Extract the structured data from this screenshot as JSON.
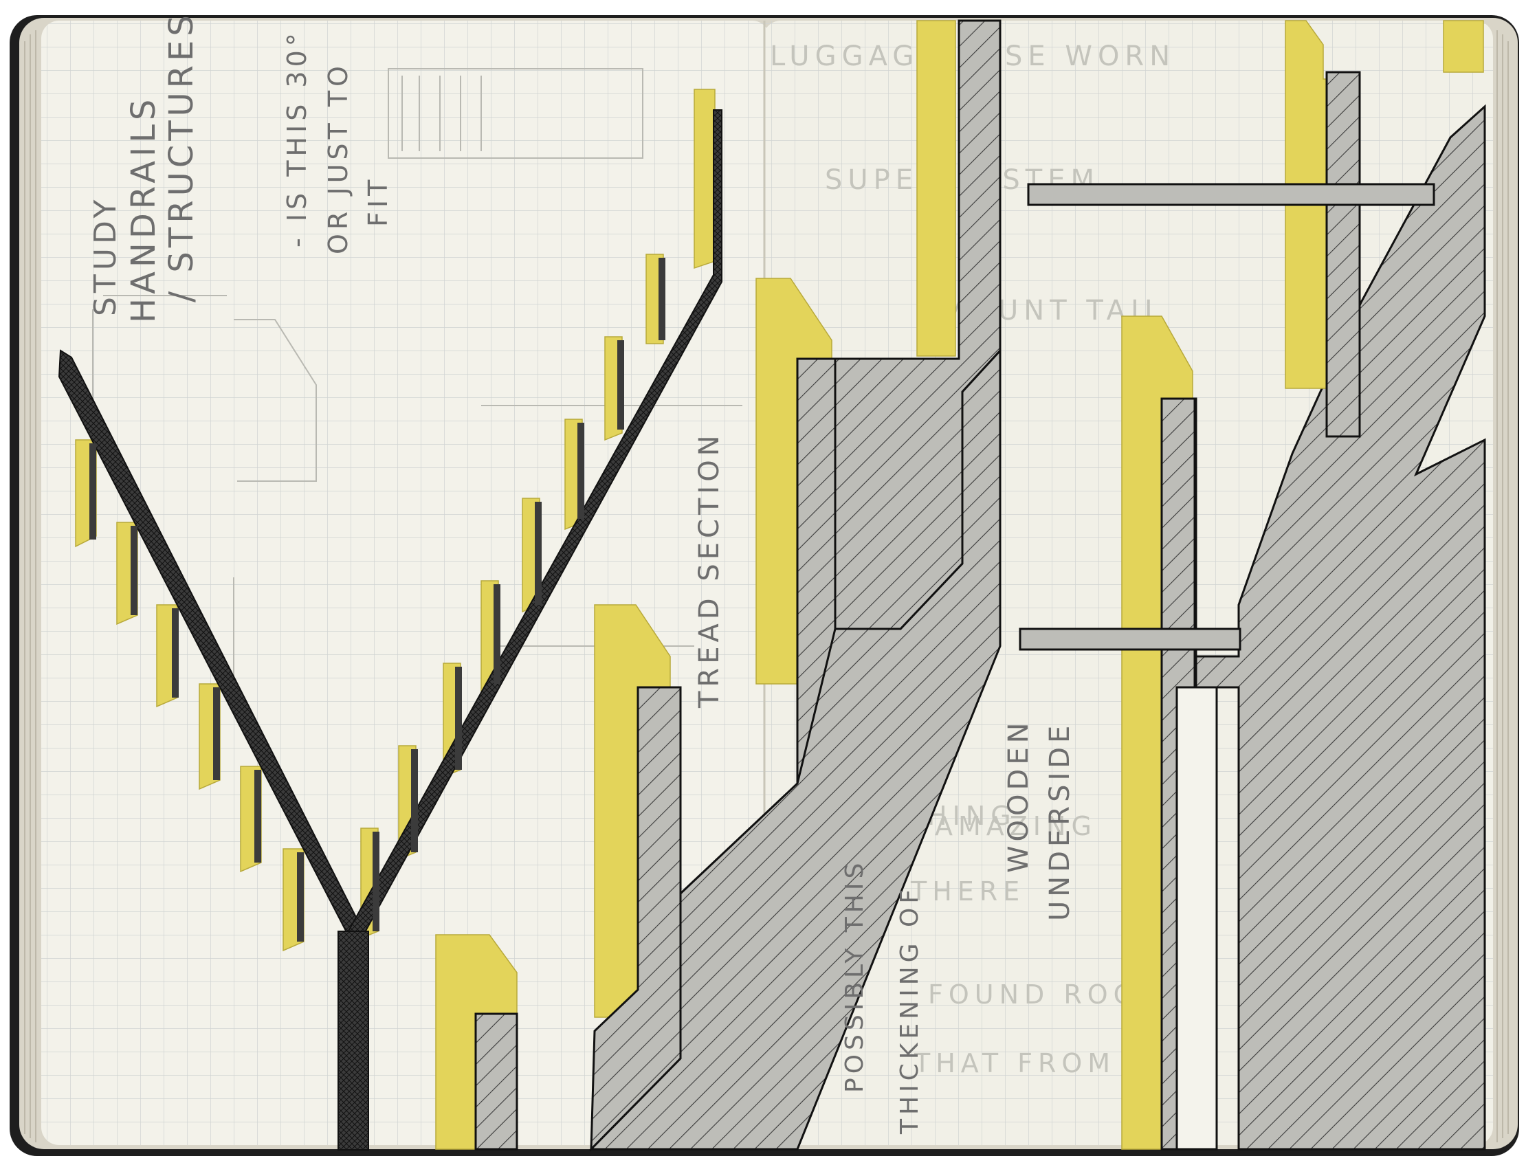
{
  "colors": {
    "paper": "#f3f2ea",
    "grid": "#cfd3d2",
    "ink": "#2b2b2b",
    "yellow": "#e3d45a",
    "stone": "#bdbdb8",
    "cover": "#1e1e1e",
    "page_edges": "#d9d5c8"
  },
  "left_page": {
    "note_title_line1": "STUDY",
    "note_title_line2": "HANDRAILS",
    "note_title_line3": "/ STRUCTURES",
    "question_line1": "- IS THIS 30°",
    "question_line2": "OR JUST TO",
    "question_line3": "FIT",
    "tread_label": "TREAD SECTION"
  },
  "right_page": {
    "thickening_line1": "POSSIBLY THIS",
    "thickening_line2": "THICKENING OF",
    "wooden_line1": "WOODEN",
    "wooden_line2": "UNDERSIDE"
  }
}
